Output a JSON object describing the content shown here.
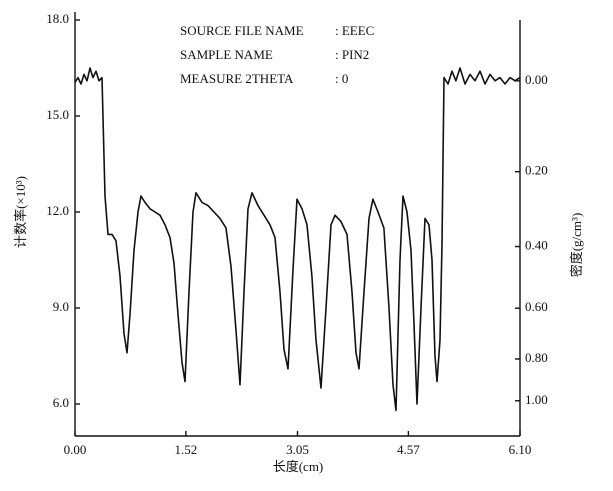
{
  "chart_data": {
    "type": "line",
    "annotations": [
      {
        "label": "SOURCE FILE NAME",
        "value": ": EEEC"
      },
      {
        "label": "SAMPLE NAME",
        "value": ": PIN2"
      },
      {
        "label": "MEASURE 2THETA",
        "value": ": 0"
      }
    ],
    "xlabel": "长度(cm)",
    "ylabel": "计数率(×10³)",
    "y2label": "密度(g/cm³)",
    "xlim": [
      0,
      6.1
    ],
    "xticks": [
      {
        "value": 0,
        "label": "0.00"
      },
      1.52,
      3.05,
      4.57,
      {
        "value": 6.1,
        "label": "6.10"
      }
    ],
    "ylim": [
      5,
      18
    ],
    "yticks": [
      {
        "value": 18,
        "label": "18.0"
      },
      {
        "value": 15,
        "label": "15.0"
      },
      {
        "value": 12,
        "label": "12.0"
      },
      {
        "value": 9,
        "label": "9.0"
      },
      {
        "value": 6,
        "label": "6.0"
      }
    ],
    "y2lim": [
      1.205,
      -0.115
    ],
    "y2scale": "exponential",
    "y2ticks": [
      {
        "value": 0,
        "label": "0.00"
      },
      {
        "value": 0.2,
        "label": "0.20"
      },
      {
        "value": 0.4,
        "label": "0.40"
      },
      {
        "value": 0.6,
        "label": "0.60"
      },
      {
        "value": 0.8,
        "label": "0.80"
      },
      {
        "value": 1.0,
        "label": "1.00"
      }
    ],
    "series": [
      {
        "color": "#111111",
        "x": [
          0,
          0.041,
          0.082,
          0.123,
          0.164,
          0.206,
          0.247,
          0.288,
          0.329,
          0.37,
          0.411,
          0.452,
          0.507,
          0.562,
          0.617,
          0.672,
          0.713,
          0.754,
          0.809,
          0.864,
          0.905,
          0.96,
          1.028,
          1.097,
          1.165,
          1.234,
          1.302,
          1.357,
          1.412,
          1.467,
          1.508,
          1.563,
          1.618,
          1.659,
          1.741,
          1.823,
          1.905,
          1.988,
          2.07,
          2.138,
          2.207,
          2.262,
          2.317,
          2.371,
          2.426,
          2.509,
          2.591,
          2.673,
          2.742,
          2.81,
          2.865,
          2.92,
          2.988,
          3.043,
          3.111,
          3.18,
          3.248,
          3.303,
          3.372,
          3.44,
          3.509,
          3.564,
          3.646,
          3.728,
          3.797,
          3.852,
          3.893,
          3.961,
          4.03,
          4.084,
          4.153,
          4.235,
          4.304,
          4.359,
          4.4,
          4.455,
          4.496,
          4.551,
          4.606,
          4.647,
          4.688,
          4.743,
          4.798,
          4.853,
          4.894,
          4.935,
          4.962,
          5.003,
          5.031,
          5.058,
          5.113,
          5.168,
          5.222,
          5.277,
          5.346,
          5.415,
          5.483,
          5.552,
          5.62,
          5.689,
          5.757,
          5.826,
          5.894,
          5.963,
          6.031,
          6.1
        ],
        "values": [
          16.05,
          16.2,
          16.0,
          16.3,
          16.1,
          16.5,
          16.2,
          16.4,
          16.1,
          16.2,
          12.5,
          11.3,
          11.3,
          11.1,
          10.0,
          8.2,
          7.6,
          8.8,
          10.8,
          12.0,
          12.5,
          12.3,
          12.1,
          12.0,
          11.9,
          11.6,
          11.2,
          10.4,
          8.8,
          7.3,
          6.7,
          9.5,
          12.0,
          12.6,
          12.3,
          12.2,
          12.0,
          11.8,
          11.5,
          10.3,
          8.3,
          6.6,
          9.5,
          12.1,
          12.6,
          12.2,
          11.9,
          11.6,
          11.2,
          9.5,
          7.7,
          7.1,
          10.2,
          12.4,
          12.1,
          11.6,
          10.0,
          8.0,
          6.5,
          9.0,
          11.6,
          11.9,
          11.7,
          11.3,
          9.5,
          7.6,
          7.1,
          9.5,
          11.8,
          12.4,
          12.0,
          11.5,
          9.0,
          6.6,
          5.8,
          10.5,
          12.5,
          12.0,
          10.8,
          8.5,
          6.0,
          9.0,
          11.8,
          11.6,
          10.5,
          7.5,
          6.7,
          8.0,
          11.0,
          16.2,
          16.0,
          16.4,
          16.1,
          16.5,
          16.0,
          16.3,
          16.1,
          16.4,
          16.0,
          16.3,
          16.1,
          16.2,
          16.0,
          16.2,
          16.1,
          16.2
        ]
      }
    ]
  }
}
